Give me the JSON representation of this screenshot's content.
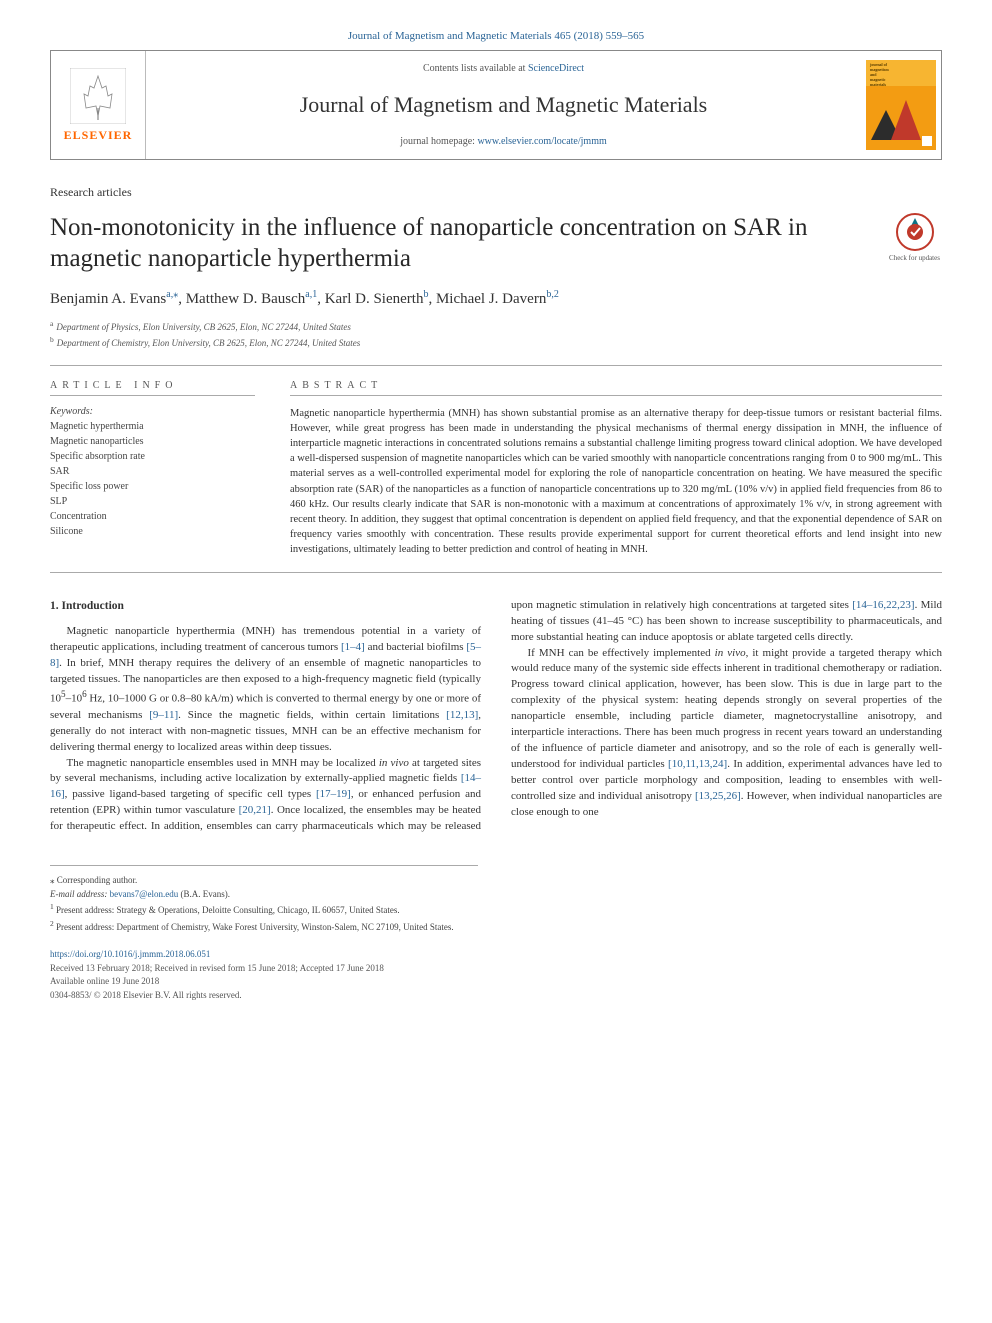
{
  "top_link": "Journal of Magnetism and Magnetic Materials 465 (2018) 559–565",
  "header": {
    "contents_prefix": "Contents lists available at ",
    "contents_link": "ScienceDirect",
    "journal_name": "Journal of Magnetism and Magnetic Materials",
    "homepage_prefix": "journal homepage: ",
    "homepage_link": "www.elsevier.com/locate/jmmm",
    "elsevier_name": "ELSEVIER",
    "cover_colors": {
      "orange": "#f39c12",
      "dark": "#2c2c2c",
      "red": "#c0392b"
    },
    "cover_title_lines": [
      "journal of",
      "magnetism",
      "and",
      "magnetic",
      "materials"
    ]
  },
  "article_type": "Research articles",
  "title": "Non-monotonicity in the influence of nanoparticle concentration on SAR in magnetic nanoparticle hyperthermia",
  "updates_badge": "Check for updates",
  "authors_html": "Benjamin A. Evans<sup>a,</sup><sup>⁎</sup>, Matthew D. Bausch<sup>a,1</sup>, Karl D. Sienerth<sup>b</sup>, Michael J. Davern<sup>b,2</sup>",
  "affiliations": [
    {
      "sup": "a",
      "text": "Department of Physics, Elon University, CB 2625, Elon, NC 27244, United States"
    },
    {
      "sup": "b",
      "text": "Department of Chemistry, Elon University, CB 2625, Elon, NC 27244, United States"
    }
  ],
  "info_header": "ARTICLE INFO",
  "keywords_label": "Keywords:",
  "keywords": [
    "Magnetic hyperthermia",
    "Magnetic nanoparticles",
    "Specific absorption rate",
    "SAR",
    "Specific loss power",
    "SLP",
    "Concentration",
    "Silicone"
  ],
  "abstract_header": "ABSTRACT",
  "abstract": "Magnetic nanoparticle hyperthermia (MNH) has shown substantial promise as an alternative therapy for deep-tissue tumors or resistant bacterial films. However, while great progress has been made in understanding the physical mechanisms of thermal energy dissipation in MNH, the influence of interparticle magnetic interactions in concentrated solutions remains a substantial challenge limiting progress toward clinical adoption. We have developed a well-dispersed suspension of magnetite nanoparticles which can be varied smoothly with nanoparticle concentrations ranging from 0 to 900 mg/mL. This material serves as a well-controlled experimental model for exploring the role of nanoparticle concentration on heating. We have measured the specific absorption rate (SAR) of the nanoparticles as a function of nanoparticle concentrations up to 320 mg/mL (10% v/v) in applied field frequencies from 86 to 460 kHz. Our results clearly indicate that SAR is non-monotonic with a maximum at concentrations of approximately 1% v/v, in strong agreement with recent theory. In addition, they suggest that optimal concentration is dependent on applied field frequency, and that the exponential dependence of SAR on frequency varies smoothly with concentration. These results provide experimental support for current theoretical efforts and lend insight into new investigations, ultimately leading to better prediction and control of heating in MNH.",
  "sections": {
    "intro_heading": "1. Introduction",
    "p1_parts": [
      "Magnetic nanoparticle hyperthermia (MNH) has tremendous potential in a variety of therapeutic applications, including treatment of cancerous tumors ",
      " and bacterial biofilms ",
      ". In brief, MNH therapy requires the delivery of an ensemble of magnetic nanoparticles to targeted tissues. The nanoparticles are then exposed to a high-frequency magnetic field (typically 10",
      "–10",
      " Hz, 10–1000 G or 0.8–80 kA/m) which is converted to thermal energy by one or more of several mechanisms ",
      ". Since the magnetic fields, within certain limitations ",
      ", generally do not interact with non-magnetic tissues, MNH can be an effective mechanism for delivering thermal energy to localized areas within deep tissues."
    ],
    "p1_cites": [
      "[1–4]",
      "[5–8]",
      "[9–11]",
      "[12,13]"
    ],
    "p1_sup": [
      "5",
      "6"
    ],
    "p2_parts": [
      "The magnetic nanoparticle ensembles used in MNH may be localized ",
      " at targeted sites by several mechanisms, including active localization by externally-applied magnetic fields ",
      ", passive ligand-based targeting of specific cell types ",
      ", or enhanced perfusion and retention (EPR) within tumor vasculature ",
      ". Once localized, the ensembles may be heated for therapeutic effect. In addition, ensembles can carry pharmaceuticals which may be released upon magnetic stimulation in relatively high concentrations at targeted sites ",
      ". Mild heating of tissues (41–45 °C) has been shown to increase susceptibility to pharmaceuticals, and more substantial heating can induce apoptosis or ablate targeted cells directly."
    ],
    "p2_italic": "in vivo",
    "p2_cites": [
      "[14–16]",
      "[17–19]",
      "[20,21]",
      "[14–16,22,23]"
    ],
    "p3_parts": [
      "If MNH can be effectively implemented ",
      ", it might provide a targeted therapy which would reduce many of the systemic side effects inherent in traditional chemotherapy or radiation. Progress toward clinical application, however, has been slow. This is due in large part to the complexity of the physical system: heating depends strongly on several properties of the nanoparticle ensemble, including particle diameter, magnetocrystalline anisotropy, and interparticle interactions. There has been much progress in recent years toward an understanding of the influence of particle diameter and anisotropy, and so the role of each is generally well-understood for individual particles ",
      ". In addition, experimental advances have led to better control over particle morphology and composition, leading to ensembles with well-controlled size and individual anisotropy ",
      ". However, when individual nanoparticles are close enough to one"
    ],
    "p3_italic": "in vivo",
    "p3_cites": [
      "[10,11,13,24]",
      "[13,25,26]"
    ]
  },
  "footnotes": {
    "corr": "⁎ Corresponding author.",
    "email_label": "E-mail address: ",
    "email": "bevans7@elon.edu",
    "email_suffix": " (B.A. Evans).",
    "n1": "Present address: Strategy & Operations, Deloitte Consulting, Chicago, IL 60657, United States.",
    "n2": "Present address: Department of Chemistry, Wake Forest University, Winston-Salem, NC 27109, United States."
  },
  "footer": {
    "doi": "https://doi.org/10.1016/j.jmmm.2018.06.051",
    "received": "Received 13 February 2018; Received in revised form 15 June 2018; Accepted 17 June 2018",
    "available": "Available online 19 June 2018",
    "copyright": "0304-8853/ © 2018 Elsevier B.V. All rights reserved."
  },
  "colors": {
    "link": "#2a6496",
    "text": "#333333",
    "rule": "#aaaaaa",
    "elsevier_orange": "#ff6600"
  }
}
